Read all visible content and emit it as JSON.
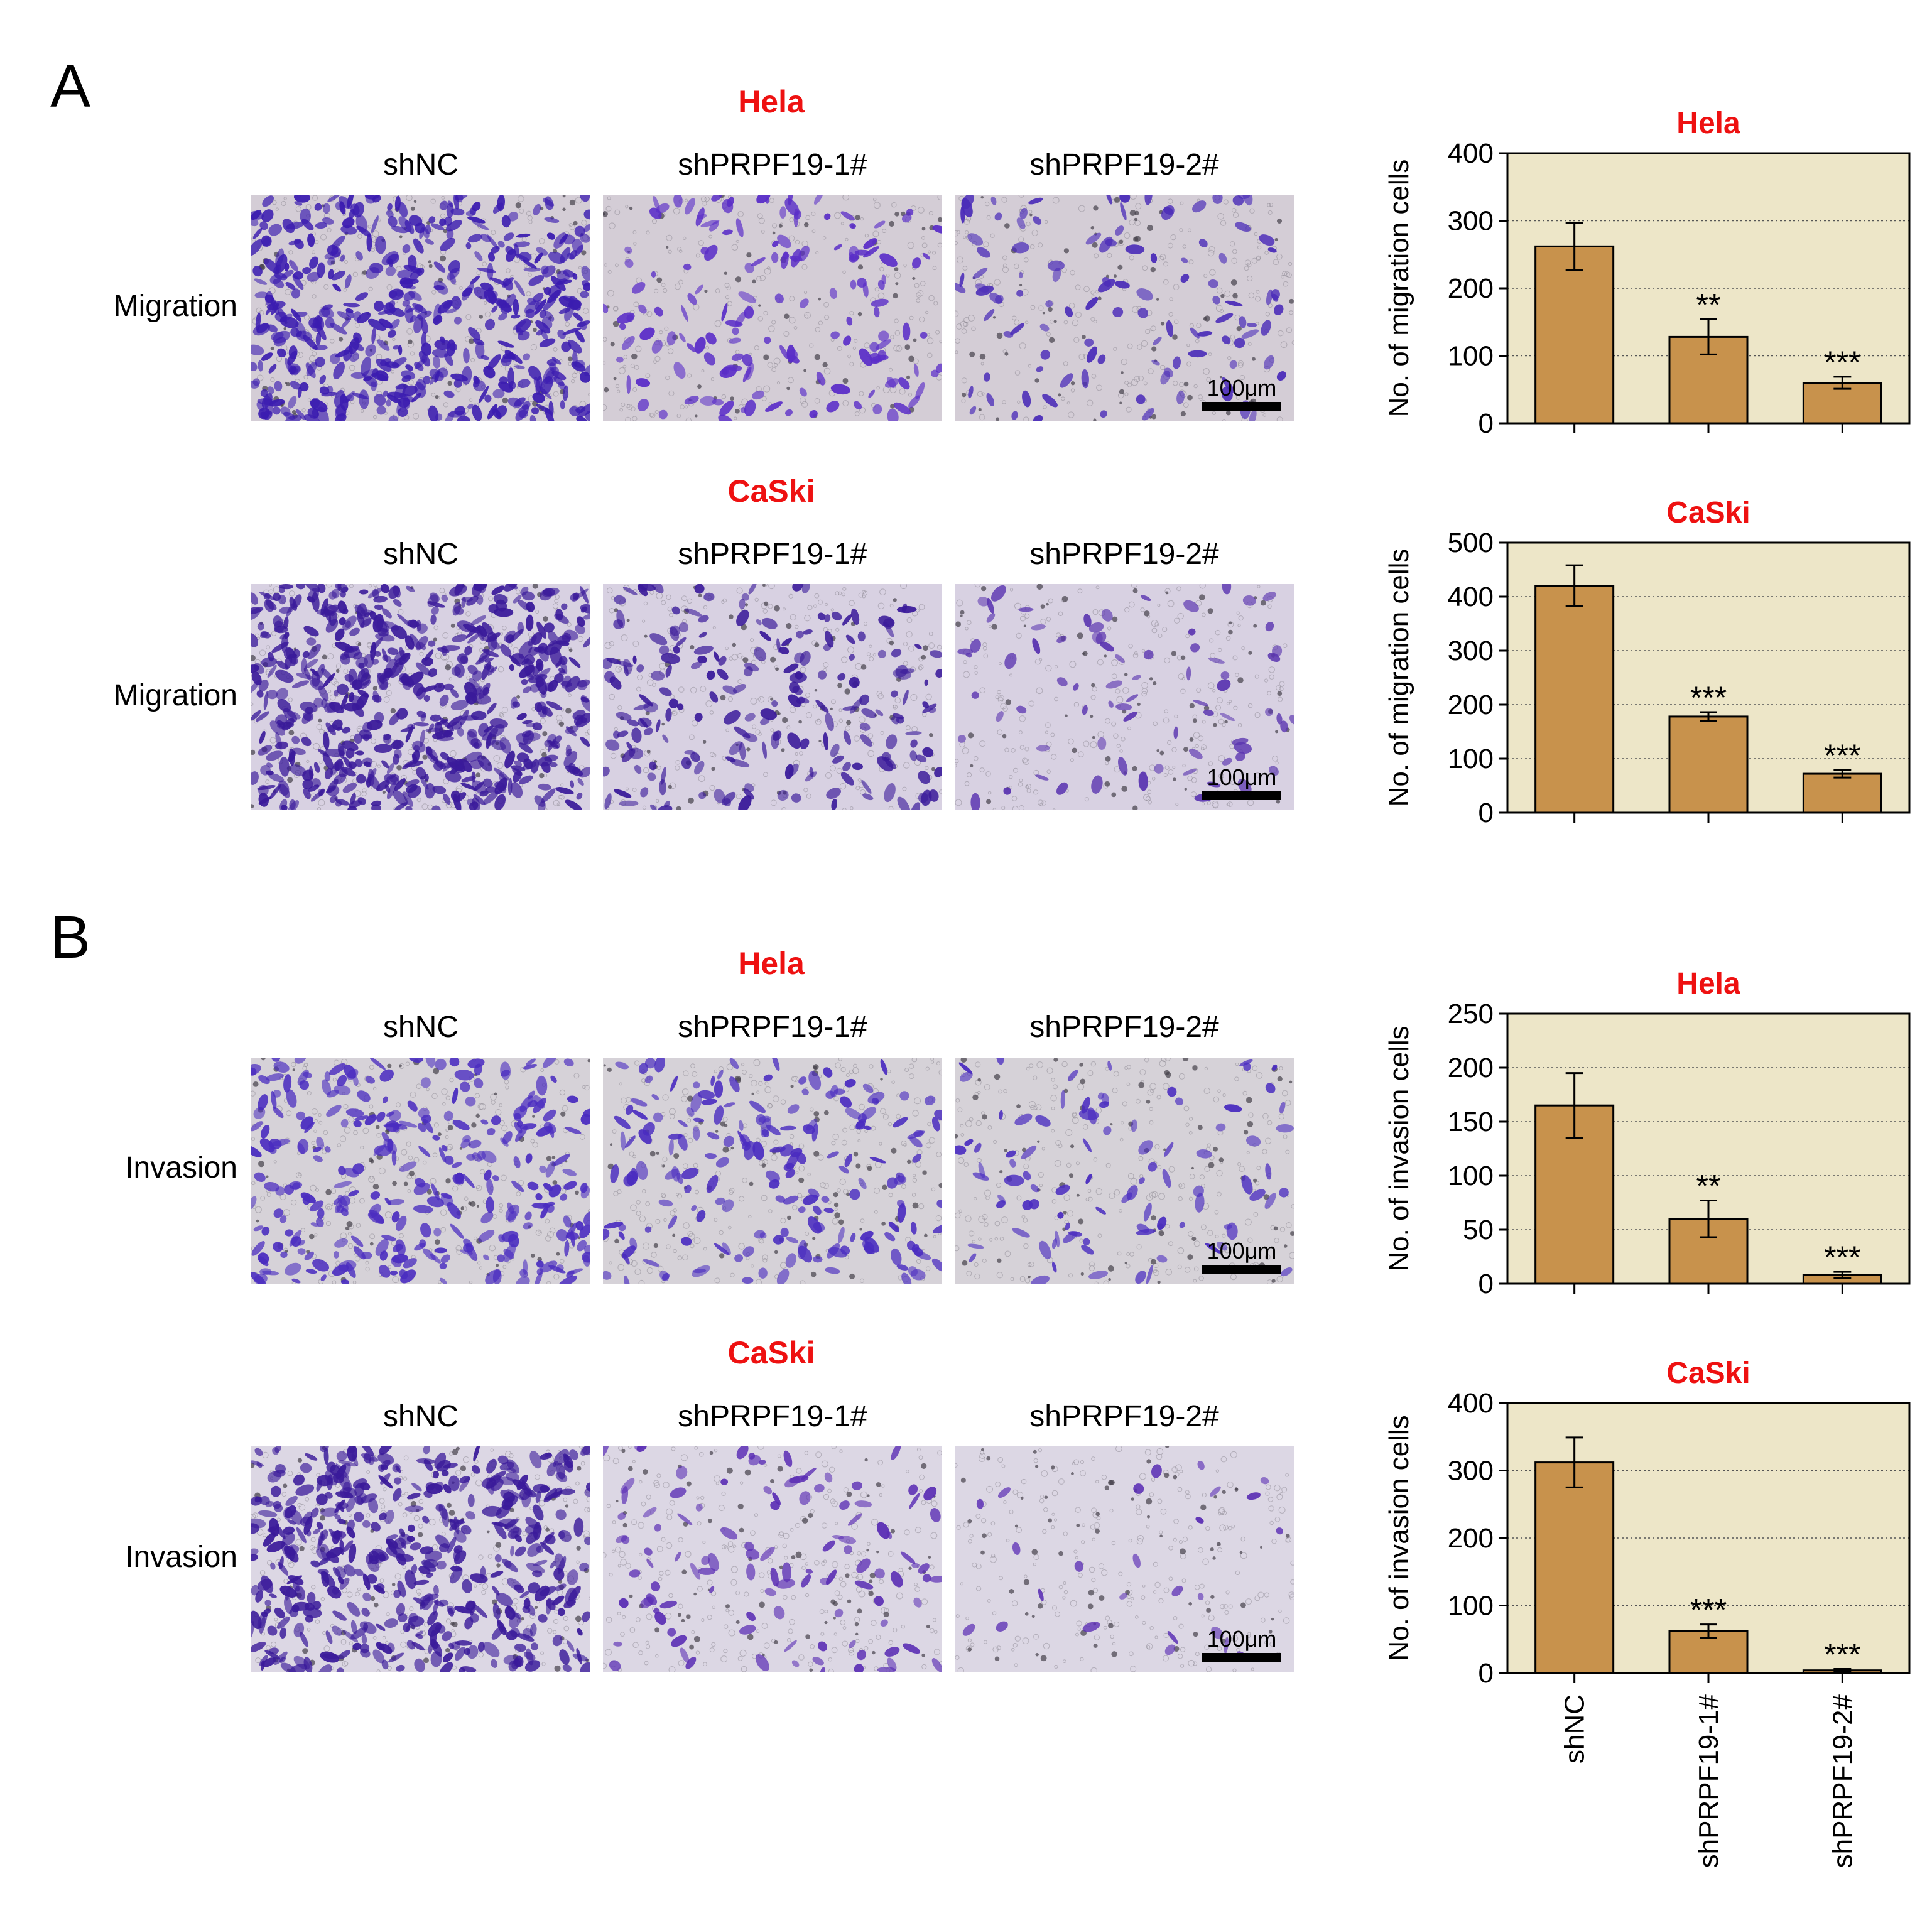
{
  "panels": [
    {
      "letter": "A",
      "assay": "Migration",
      "rows": [
        {
          "cell_line": "Hela",
          "texture": "hela_mig"
        },
        {
          "cell_line": "CaSki",
          "texture": "caski_mig"
        }
      ]
    },
    {
      "letter": "B",
      "assay": "Invasion",
      "rows": [
        {
          "cell_line": "Hela",
          "texture": "hela_inv"
        },
        {
          "cell_line": "CaSki",
          "texture": "caski_inv"
        }
      ]
    }
  ],
  "groups": [
    "shNC",
    "shPRPF19-1#",
    "shPRPF19-2#"
  ],
  "scale_bar": "100μm",
  "colors": {
    "bar": "#c8924c",
    "plot_bg": "#ede6c8",
    "title": "#ee1111",
    "stain": "#5a2db4"
  },
  "chart_data": [
    {
      "type": "bar",
      "title": "Hela",
      "ylabel": "No. of migration cells",
      "categories": [
        "shNC",
        "shPRPF19-1#",
        "shPRPF19-2#"
      ],
      "values": [
        262,
        128,
        60
      ],
      "errors": [
        35,
        26,
        9
      ],
      "significance": [
        "",
        "**",
        "***"
      ],
      "ylim": [
        0,
        400
      ],
      "yticks": [
        0,
        100,
        200,
        300,
        400
      ],
      "grid": true,
      "show_xlabels": false
    },
    {
      "type": "bar",
      "title": "CaSki",
      "ylabel": "No. of migration cells",
      "categories": [
        "shNC",
        "shPRPF19-1#",
        "shPRPF19-2#"
      ],
      "values": [
        420,
        178,
        72
      ],
      "errors": [
        38,
        8,
        7
      ],
      "significance": [
        "",
        "***",
        "***"
      ],
      "ylim": [
        0,
        500
      ],
      "yticks": [
        0,
        100,
        200,
        300,
        400,
        500
      ],
      "grid": true,
      "show_xlabels": false
    },
    {
      "type": "bar",
      "title": "Hela",
      "ylabel": "No. of invasion cells",
      "categories": [
        "shNC",
        "shPRPF19-1#",
        "shPRPF19-2#"
      ],
      "values": [
        165,
        60,
        8
      ],
      "errors": [
        30,
        17,
        3
      ],
      "significance": [
        "",
        "**",
        "***"
      ],
      "ylim": [
        0,
        250
      ],
      "yticks": [
        0,
        50,
        100,
        150,
        200,
        250
      ],
      "grid": true,
      "show_xlabels": false
    },
    {
      "type": "bar",
      "title": "CaSki",
      "ylabel": "No. of invasion cells",
      "categories": [
        "shNC",
        "shPRPF19-1#",
        "shPRPF19-2#"
      ],
      "values": [
        312,
        62,
        4
      ],
      "errors": [
        37,
        10,
        2
      ],
      "significance": [
        "",
        "***",
        "***"
      ],
      "ylim": [
        0,
        400
      ],
      "yticks": [
        0,
        100,
        200,
        300,
        400
      ],
      "grid": true,
      "show_xlabels": true
    }
  ]
}
